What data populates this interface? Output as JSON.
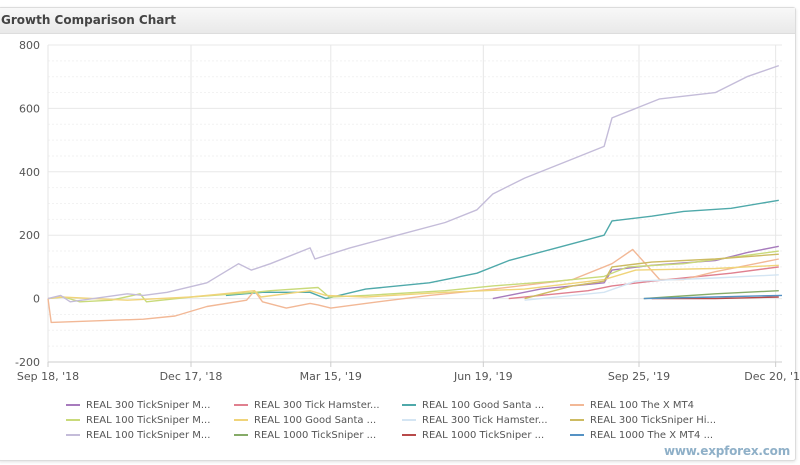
{
  "title": "Growth Comparison Chart",
  "watermark": "www.expforex.com",
  "chart_data": {
    "type": "line",
    "title": "Growth Comparison Chart",
    "xlabel": "",
    "ylabel": "",
    "x_unit": "days since Sep 18, '18",
    "xlim": [
      0,
      462
    ],
    "ylim": [
      -200,
      800
    ],
    "yticks": [
      -200,
      0,
      200,
      400,
      600,
      800
    ],
    "xticks": [
      {
        "day": 0,
        "label": "Sep 18, '18"
      },
      {
        "day": 90,
        "label": "Dec 17, '18"
      },
      {
        "day": 178,
        "label": "Mar 15, '19"
      },
      {
        "day": 274,
        "label": "Jun 19, '19"
      },
      {
        "day": 372,
        "label": "Sep 25, '19"
      },
      {
        "day": 458,
        "label": "Dec 20, '19"
      }
    ],
    "grid": true,
    "legend_position": "bottom",
    "series": [
      {
        "name": "REAL 300 TickSniper M...",
        "color": "#a77bbd",
        "points": [
          [
            280,
            0
          ],
          [
            290,
            10
          ],
          [
            310,
            30
          ],
          [
            330,
            40
          ],
          [
            350,
            50
          ],
          [
            355,
            90
          ],
          [
            380,
            105
          ],
          [
            420,
            120
          ],
          [
            440,
            145
          ],
          [
            460,
            165
          ]
        ]
      },
      {
        "name": "REAL 300 Tick Hamster...",
        "color": "#e0808f",
        "points": [
          [
            290,
            0
          ],
          [
            310,
            10
          ],
          [
            340,
            25
          ],
          [
            355,
            40
          ],
          [
            380,
            55
          ],
          [
            400,
            65
          ],
          [
            430,
            80
          ],
          [
            460,
            100
          ]
        ]
      },
      {
        "name": "REAL 100 Good Santa ...",
        "color": "#4fa9aa",
        "points": [
          [
            112,
            10
          ],
          [
            135,
            20
          ],
          [
            165,
            20
          ],
          [
            175,
            0
          ],
          [
            200,
            30
          ],
          [
            240,
            50
          ],
          [
            270,
            80
          ],
          [
            290,
            120
          ],
          [
            320,
            160
          ],
          [
            350,
            200
          ],
          [
            355,
            245
          ],
          [
            380,
            260
          ],
          [
            400,
            275
          ],
          [
            430,
            285
          ],
          [
            460,
            310
          ]
        ]
      },
      {
        "name": "REAL 100 The X MT4",
        "color": "#f2b896",
        "points": [
          [
            0,
            0
          ],
          [
            2,
            -75
          ],
          [
            60,
            -65
          ],
          [
            80,
            -55
          ],
          [
            100,
            -25
          ],
          [
            125,
            -5
          ],
          [
            130,
            25
          ],
          [
            135,
            -10
          ],
          [
            150,
            -30
          ],
          [
            165,
            -15
          ],
          [
            170,
            -20
          ],
          [
            178,
            -30
          ],
          [
            200,
            -15
          ],
          [
            240,
            10
          ],
          [
            280,
            30
          ],
          [
            330,
            60
          ],
          [
            355,
            110
          ],
          [
            368,
            155
          ],
          [
            385,
            60
          ],
          [
            400,
            60
          ],
          [
            420,
            85
          ],
          [
            460,
            125
          ]
        ]
      },
      {
        "name": "REAL 100 TickSniper M...",
        "color": "#c9da7a",
        "points": [
          [
            0,
            0
          ],
          [
            10,
            5
          ],
          [
            20,
            -10
          ],
          [
            40,
            -5
          ],
          [
            58,
            15
          ],
          [
            62,
            -10
          ],
          [
            90,
            5
          ],
          [
            130,
            20
          ],
          [
            140,
            25
          ],
          [
            170,
            35
          ],
          [
            177,
            5
          ],
          [
            200,
            10
          ],
          [
            250,
            25
          ],
          [
            280,
            40
          ],
          [
            320,
            55
          ],
          [
            350,
            70
          ],
          [
            365,
            100
          ],
          [
            400,
            110
          ],
          [
            430,
            130
          ],
          [
            460,
            150
          ]
        ]
      },
      {
        "name": "REAL 100 Good Santa ...",
        "color": "#f0d47a",
        "points": [
          [
            0,
            0
          ],
          [
            8,
            5
          ],
          [
            50,
            -5
          ],
          [
            90,
            5
          ],
          [
            120,
            20
          ],
          [
            130,
            25
          ],
          [
            134,
            5
          ],
          [
            165,
            25
          ],
          [
            175,
            10
          ],
          [
            200,
            5
          ],
          [
            250,
            20
          ],
          [
            300,
            30
          ],
          [
            350,
            60
          ],
          [
            370,
            90
          ],
          [
            420,
            95
          ],
          [
            460,
            105
          ]
        ]
      },
      {
        "name": "REAL 300 Tick Hamster...",
        "color": "#d4e5f3",
        "points": [
          [
            300,
            -5
          ],
          [
            350,
            20
          ],
          [
            370,
            55
          ],
          [
            420,
            65
          ],
          [
            460,
            75
          ]
        ]
      },
      {
        "name": "REAL 300 TickSniper Hi...",
        "color": "#cdbb62",
        "points": [
          [
            300,
            0
          ],
          [
            330,
            40
          ],
          [
            350,
            55
          ],
          [
            355,
            100
          ],
          [
            380,
            115
          ],
          [
            420,
            125
          ],
          [
            460,
            140
          ]
        ]
      },
      {
        "name": "REAL 100 TickSniper M...",
        "color": "#c4bcd9",
        "points": [
          [
            0,
            0
          ],
          [
            8,
            10
          ],
          [
            14,
            -10
          ],
          [
            50,
            15
          ],
          [
            60,
            10
          ],
          [
            75,
            20
          ],
          [
            100,
            50
          ],
          [
            120,
            110
          ],
          [
            128,
            90
          ],
          [
            140,
            110
          ],
          [
            165,
            160
          ],
          [
            168,
            125
          ],
          [
            190,
            160
          ],
          [
            220,
            200
          ],
          [
            250,
            240
          ],
          [
            270,
            280
          ],
          [
            280,
            330
          ],
          [
            300,
            380
          ],
          [
            330,
            440
          ],
          [
            350,
            480
          ],
          [
            355,
            570
          ],
          [
            370,
            600
          ],
          [
            385,
            630
          ],
          [
            420,
            650
          ],
          [
            440,
            700
          ],
          [
            460,
            735
          ]
        ]
      },
      {
        "name": "REAL 1000 TickSniper ...",
        "color": "#86ab68",
        "points": [
          [
            375,
            0
          ],
          [
            390,
            5
          ],
          [
            420,
            15
          ],
          [
            460,
            25
          ]
        ]
      },
      {
        "name": "REAL 1000 TickSniper ...",
        "color": "#b84a4a",
        "points": [
          [
            380,
            0
          ],
          [
            420,
            0
          ],
          [
            460,
            5
          ]
        ]
      },
      {
        "name": "REAL 1000 The X MT4 ...",
        "color": "#5592c4",
        "points": [
          [
            375,
            0
          ],
          [
            420,
            5
          ],
          [
            462,
            10
          ]
        ]
      }
    ]
  }
}
